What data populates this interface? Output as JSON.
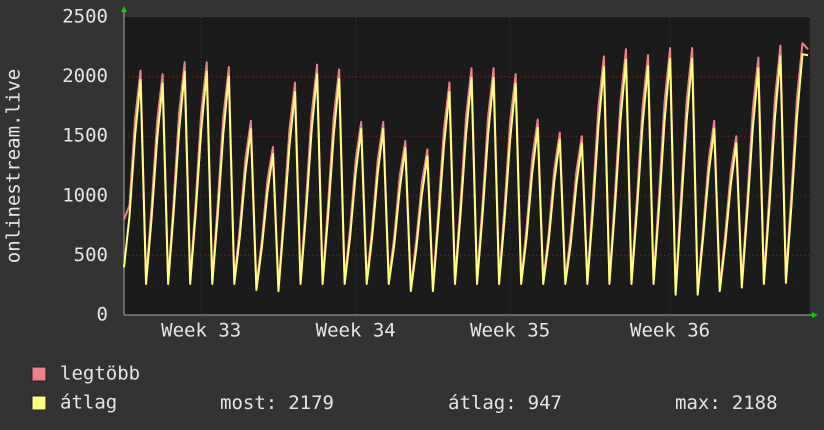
{
  "chart_data": {
    "type": "line",
    "y_label": "onlinestream.live",
    "categories": [
      null,
      null,
      null,
      null,
      null,
      null,
      null,
      null,
      null,
      null,
      null,
      null,
      null,
      null,
      "Week 33",
      null,
      null,
      null,
      null,
      null,
      null,
      null,
      null,
      null,
      null,
      null,
      null,
      null,
      null,
      null,
      null,
      null,
      null,
      null,
      null,
      null,
      null,
      null,
      null,
      null,
      null,
      null,
      "Week 34",
      null,
      null,
      null,
      null,
      null,
      null,
      null,
      null,
      null,
      null,
      null,
      null,
      null,
      null,
      null,
      null,
      null,
      null,
      null,
      null,
      null,
      null,
      null,
      null,
      null,
      null,
      null,
      "Week 35",
      null,
      null,
      null,
      null,
      null,
      null,
      null,
      null,
      null,
      null,
      null,
      null,
      null,
      null,
      null,
      null,
      null,
      null,
      null,
      null,
      null,
      null,
      null,
      null,
      null,
      null,
      null,
      null,
      "Week 36",
      null,
      null,
      null,
      null,
      null,
      null,
      null,
      null,
      null,
      null,
      null,
      null,
      null,
      null,
      null,
      null,
      null,
      null,
      null,
      null,
      null,
      null,
      null,
      null,
      null
    ],
    "series": [
      {
        "name": "legtöbb",
        "color": "#f07f88",
        "values": [
          800,
          920,
          1640,
          2050,
          290,
          910,
          1620,
          2020,
          290,
          950,
          1700,
          2120,
          290,
          950,
          1700,
          2120,
          290,
          940,
          1660,
          2080,
          290,
          730,
          1300,
          1630,
          240,
          630,
          1130,
          1410,
          230,
          880,
          1560,
          1950,
          290,
          950,
          1680,
          2100,
          290,
          930,
          1650,
          2060,
          290,
          730,
          1300,
          1620,
          290,
          730,
          1300,
          1620,
          290,
          660,
          1170,
          1460,
          230,
          630,
          1110,
          1390,
          230,
          880,
          1560,
          1950,
          290,
          930,
          1660,
          2070,
          290,
          930,
          1660,
          2070,
          290,
          910,
          1620,
          2020,
          290,
          740,
          1310,
          1640,
          290,
          690,
          1220,
          1530,
          290,
          680,
          1200,
          1500,
          290,
          980,
          1740,
          2170,
          290,
          1000,
          1780,
          2230,
          290,
          980,
          1740,
          2180,
          290,
          1010,
          1790,
          2240,
          200,
          1010,
          1790,
          2240,
          200,
          730,
          1300,
          1630,
          230,
          680,
          1200,
          1500,
          260,
          970,
          1730,
          2160,
          290,
          1020,
          1810,
          2260,
          300,
          1030,
          1820,
          2280,
          2230
        ]
      },
      {
        "name": "átlag",
        "color": "#ffff80",
        "values": [
          400,
          830,
          1500,
          1970,
          260,
          810,
          1470,
          1940,
          260,
          860,
          1550,
          2040,
          260,
          860,
          1550,
          2040,
          260,
          840,
          1520,
          2000,
          260,
          660,
          1190,
          1560,
          210,
          570,
          1030,
          1350,
          200,
          790,
          1420,
          1870,
          260,
          850,
          1540,
          2020,
          260,
          830,
          1500,
          1980,
          260,
          660,
          1190,
          1560,
          260,
          660,
          1190,
          1560,
          260,
          590,
          1060,
          1400,
          200,
          560,
          1010,
          1330,
          200,
          790,
          1420,
          1870,
          260,
          840,
          1510,
          1990,
          260,
          840,
          1510,
          1990,
          260,
          810,
          1470,
          1940,
          260,
          660,
          1190,
          1570,
          260,
          620,
          1120,
          1470,
          260,
          600,
          1090,
          1440,
          260,
          870,
          1580,
          2080,
          260,
          900,
          1630,
          2140,
          260,
          880,
          1590,
          2090,
          260,
          900,
          1630,
          2150,
          170,
          900,
          1630,
          2150,
          170,
          660,
          1190,
          1560,
          200,
          600,
          1090,
          1440,
          230,
          870,
          1570,
          2070,
          260,
          910,
          1650,
          2170,
          270,
          920,
          1660,
          2188,
          2179
        ]
      }
    ],
    "stats": [
      {
        "label": "most:",
        "value": 2179
      },
      {
        "label": "átlag:",
        "value": 947
      },
      {
        "label": "max:",
        "value": 2188
      }
    ],
    "ylim": [
      0,
      2500
    ],
    "yticks": [
      0,
      500,
      1000,
      1500,
      2000,
      2500
    ],
    "grid": true
  }
}
